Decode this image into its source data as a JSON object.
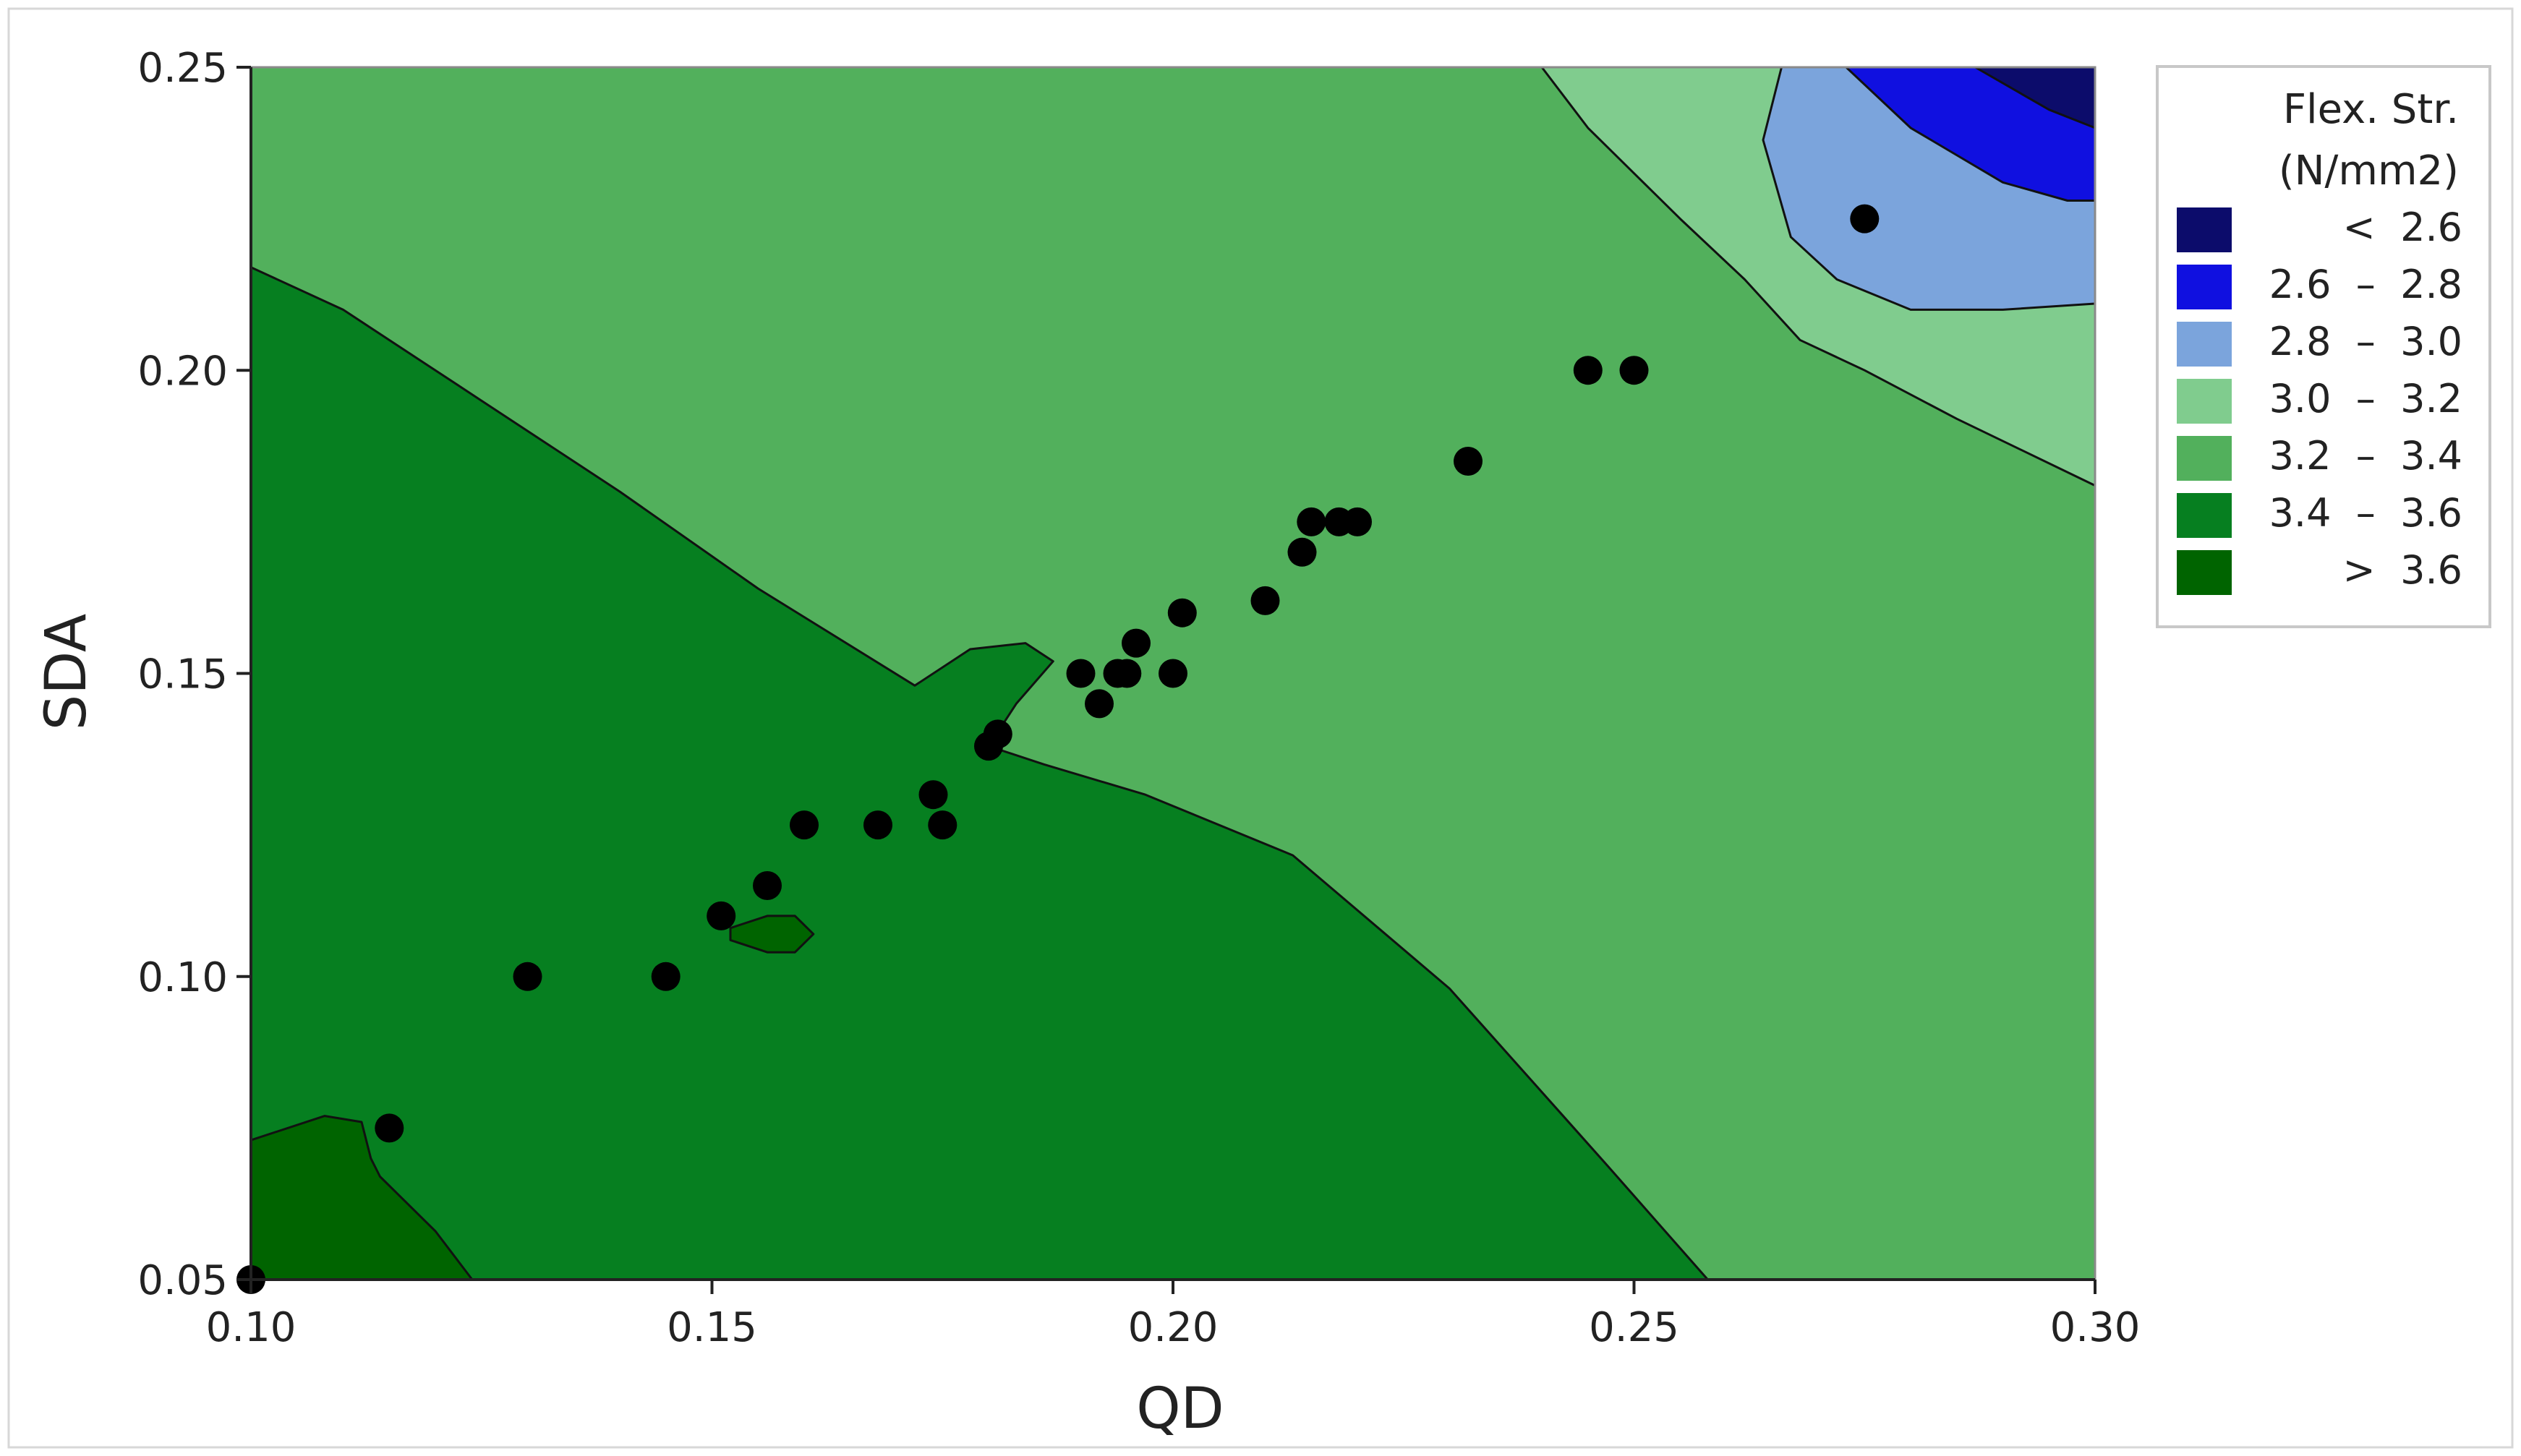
{
  "chart_data": {
    "type": "contour",
    "xlabel": "QD",
    "ylabel": "SDA",
    "xlim": [
      0.1,
      0.3
    ],
    "ylim": [
      0.05,
      0.25
    ],
    "x_ticks": [
      "0.10",
      "0.15",
      "0.20",
      "0.25",
      "0.30"
    ],
    "y_ticks": [
      "0.05",
      "0.10",
      "0.15",
      "0.20",
      "0.25"
    ],
    "legend": {
      "title_line1": "Flex. Str.",
      "title_line2": "(N/mm2)",
      "placement": "right",
      "entries": [
        {
          "label": "<  2.6",
          "color": "#0c0c6b"
        },
        {
          "label": "2.6  –  2.8",
          "color": "#1010e0"
        },
        {
          "label": "2.8  –  3.0",
          "color": "#7ba4dc"
        },
        {
          "label": "3.0  –  3.2",
          "color": "#80cc8e"
        },
        {
          "label": "3.2  –  3.4",
          "color": "#52b05c"
        },
        {
          "label": "3.4  –  3.6",
          "color": "#067f20"
        },
        {
          "label": ">  3.6",
          "color": "#006400"
        }
      ]
    },
    "points": [
      {
        "x": 0.1,
        "y": 0.05
      },
      {
        "x": 0.115,
        "y": 0.075
      },
      {
        "x": 0.13,
        "y": 0.1
      },
      {
        "x": 0.145,
        "y": 0.1
      },
      {
        "x": 0.151,
        "y": 0.11
      },
      {
        "x": 0.156,
        "y": 0.115
      },
      {
        "x": 0.16,
        "y": 0.125
      },
      {
        "x": 0.168,
        "y": 0.125
      },
      {
        "x": 0.174,
        "y": 0.13
      },
      {
        "x": 0.175,
        "y": 0.125
      },
      {
        "x": 0.18,
        "y": 0.138
      },
      {
        "x": 0.181,
        "y": 0.14
      },
      {
        "x": 0.19,
        "y": 0.15
      },
      {
        "x": 0.192,
        "y": 0.145
      },
      {
        "x": 0.194,
        "y": 0.15
      },
      {
        "x": 0.195,
        "y": 0.15
      },
      {
        "x": 0.196,
        "y": 0.155
      },
      {
        "x": 0.2,
        "y": 0.15
      },
      {
        "x": 0.201,
        "y": 0.16
      },
      {
        "x": 0.21,
        "y": 0.162
      },
      {
        "x": 0.214,
        "y": 0.17
      },
      {
        "x": 0.215,
        "y": 0.175
      },
      {
        "x": 0.218,
        "y": 0.175
      },
      {
        "x": 0.22,
        "y": 0.175
      },
      {
        "x": 0.232,
        "y": 0.185
      },
      {
        "x": 0.245,
        "y": 0.2
      },
      {
        "x": 0.25,
        "y": 0.2
      },
      {
        "x": 0.275,
        "y": 0.225
      }
    ],
    "regions": [
      {
        "level": "2.6 – 2.8",
        "color": "#1010e0",
        "boundary": [
          [
            0.273,
            0.25
          ],
          [
            0.28,
            0.24
          ],
          [
            0.29,
            0.231
          ],
          [
            0.297,
            0.228
          ],
          [
            0.3,
            0.228
          ],
          [
            0.3,
            0.25
          ]
        ]
      },
      {
        "level": "< 2.6",
        "color": "#0c0c6b",
        "boundary": [
          [
            0.287,
            0.25
          ],
          [
            0.295,
            0.243
          ],
          [
            0.3,
            0.24
          ],
          [
            0.3,
            0.25
          ]
        ]
      },
      {
        "level": "2.8 – 3.0",
        "color": "#7ba4dc",
        "boundary": [
          [
            0.266,
            0.25
          ],
          [
            0.264,
            0.238
          ],
          [
            0.267,
            0.222
          ],
          [
            0.272,
            0.215
          ],
          [
            0.28,
            0.21
          ],
          [
            0.29,
            0.21
          ],
          [
            0.3,
            0.211
          ],
          [
            0.3,
            0.25
          ]
        ]
      },
      {
        "level": "3.0 – 3.2",
        "color": "#80cc8e",
        "boundary": [
          [
            0.24,
            0.25
          ],
          [
            0.245,
            0.24
          ],
          [
            0.255,
            0.225
          ],
          [
            0.262,
            0.215
          ],
          [
            0.268,
            0.205
          ],
          [
            0.275,
            0.2
          ],
          [
            0.285,
            0.192
          ],
          [
            0.3,
            0.181
          ],
          [
            0.3,
            0.25
          ]
        ]
      },
      {
        "level": "3.4 – 3.6",
        "color": "#067f20",
        "boundary": [
          [
            0.1,
            0.217
          ],
          [
            0.11,
            0.21
          ],
          [
            0.125,
            0.195
          ],
          [
            0.14,
            0.18
          ],
          [
            0.155,
            0.164
          ],
          [
            0.172,
            0.148
          ],
          [
            0.178,
            0.154
          ],
          [
            0.184,
            0.155
          ],
          [
            0.187,
            0.152
          ],
          [
            0.183,
            0.145
          ],
          [
            0.18,
            0.138
          ],
          [
            0.186,
            0.135
          ],
          [
            0.197,
            0.13
          ],
          [
            0.213,
            0.12
          ],
          [
            0.23,
            0.098
          ],
          [
            0.247,
            0.069
          ],
          [
            0.258,
            0.05
          ],
          [
            0.1,
            0.05
          ]
        ]
      },
      {
        "level": "> 3.6",
        "color": "#006400",
        "boundary": [
          [
            0.1,
            0.073
          ],
          [
            0.108,
            0.077
          ],
          [
            0.112,
            0.076
          ],
          [
            0.113,
            0.07
          ],
          [
            0.114,
            0.067
          ],
          [
            0.12,
            0.058
          ],
          [
            0.124,
            0.05
          ],
          [
            0.1,
            0.05
          ]
        ]
      },
      {
        "level": "> 3.6",
        "color": "#006400",
        "boundary": [
          [
            0.152,
            0.108
          ],
          [
            0.156,
            0.11
          ],
          [
            0.159,
            0.11
          ],
          [
            0.161,
            0.107
          ],
          [
            0.159,
            0.104
          ],
          [
            0.156,
            0.104
          ],
          [
            0.152,
            0.106
          ]
        ]
      }
    ]
  }
}
